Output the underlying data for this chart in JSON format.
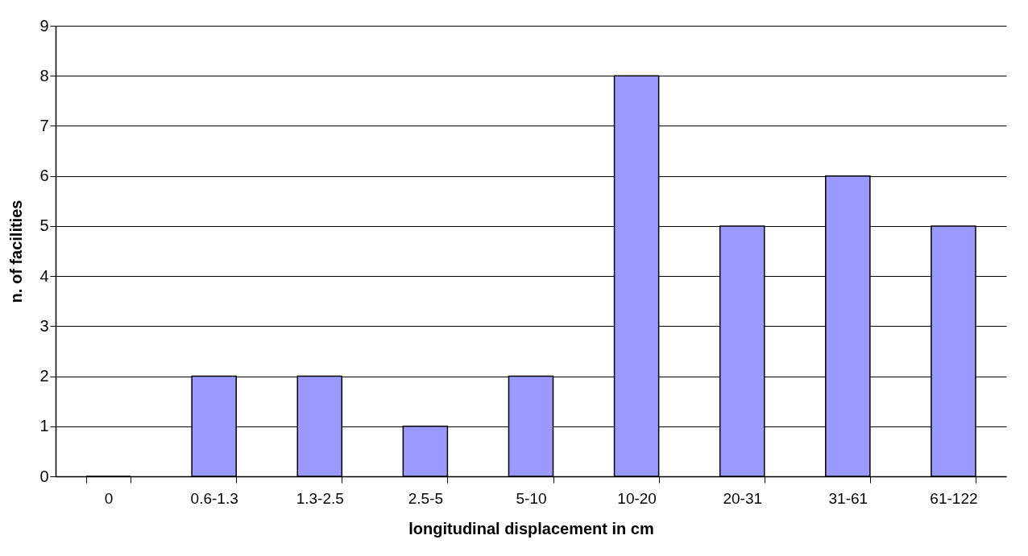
{
  "chart_data": {
    "type": "bar",
    "xlabel": "longitudinal displacement in cm",
    "ylabel": "n. of facilities",
    "categories": [
      "0",
      "0.6-1.3",
      "1.3-2.5",
      "2.5-5",
      "5-10",
      "10-20",
      "20-31",
      "31-61",
      "61-122"
    ],
    "values": [
      0,
      2,
      2,
      1,
      2,
      8,
      5,
      6,
      5
    ],
    "color": "#9999ff",
    "ylim": [
      0,
      9
    ],
    "yticks": [
      0,
      1,
      2,
      3,
      4,
      5,
      6,
      7,
      8,
      9
    ],
    "grid": "y"
  }
}
